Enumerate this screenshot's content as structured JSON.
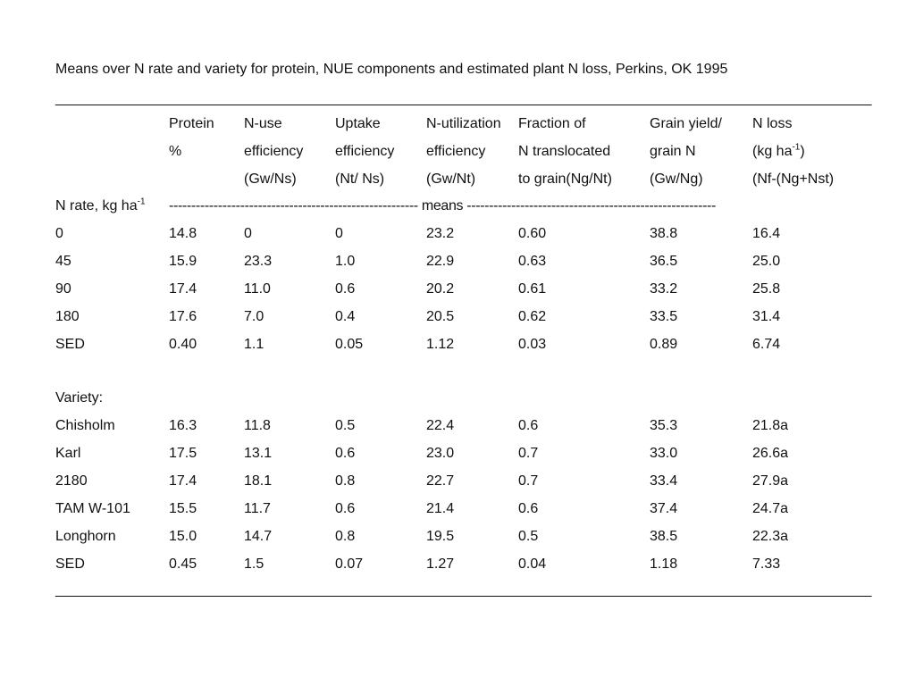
{
  "title": "Means over N rate and variety for protein, NUE components and estimated plant N loss, Perkins, OK 1995",
  "rule": "______________________________________________________________________________________________________________",
  "headers": [
    [
      "",
      "Protein",
      "N-use",
      "Uptake",
      "N-utilization",
      "Fraction of",
      "Grain yield/",
      "N loss"
    ],
    [
      "",
      "%",
      "efficiency",
      "efficiency",
      "efficiency",
      "N translocated",
      "grain N",
      "(kg ha"
    ],
    [
      "",
      "",
      "(Gw/Ns)",
      "(Nt/ Ns)",
      "(Gw/Nt)",
      "to grain(Ng/Nt)",
      "(Gw/Ng)",
      "(Nf-(Ng+Nst)"
    ]
  ],
  "nloss_unit_sup": "-1",
  "nloss_unit_close": ")",
  "nrate_label": "N rate, kg ha",
  "nrate_sup": "-1",
  "means_line": "-------------------------------------------------------- means --------------------------------------------------------",
  "nrate_rows": [
    [
      "0",
      "14.8",
      "0",
      "0",
      "23.2",
      "0.60",
      "38.8",
      "16.4"
    ],
    [
      "45",
      "15.9",
      "23.3",
      "1.0",
      "22.9",
      "0.63",
      "36.5",
      "25.0"
    ],
    [
      "90",
      "17.4",
      "11.0",
      "0.6",
      "20.2",
      "0.61",
      "33.2",
      "25.8"
    ],
    [
      "180",
      "17.6",
      "7.0",
      "0.4",
      "20.5",
      "0.62",
      "33.5",
      "31.4"
    ],
    [
      "SED",
      "0.40",
      "1.1",
      "0.05",
      "1.12",
      "0.03",
      "0.89",
      "6.74"
    ]
  ],
  "variety_label": "Variety:",
  "variety_rows": [
    [
      "Chisholm",
      "16.3",
      "11.8",
      "0.5",
      "22.4",
      "0.6",
      "35.3",
      "21.8a"
    ],
    [
      "Karl",
      "17.5",
      "13.1",
      "0.6",
      "23.0",
      "0.7",
      "33.0",
      "26.6a"
    ],
    [
      "2180",
      "17.4",
      "18.1",
      "0.8",
      "22.7",
      "0.7",
      "33.4",
      "27.9a"
    ],
    [
      "TAM W-101",
      "15.5",
      "11.7",
      "0.6",
      "21.4",
      "0.6",
      "37.4",
      "24.7a"
    ],
    [
      "Longhorn",
      "15.0",
      "14.7",
      "0.8",
      "19.5",
      "0.5",
      "38.5",
      "22.3a"
    ],
    [
      "SED",
      "0.45",
      "1.5",
      "0.07",
      "1.27",
      "0.04",
      "1.18",
      "7.33"
    ]
  ]
}
